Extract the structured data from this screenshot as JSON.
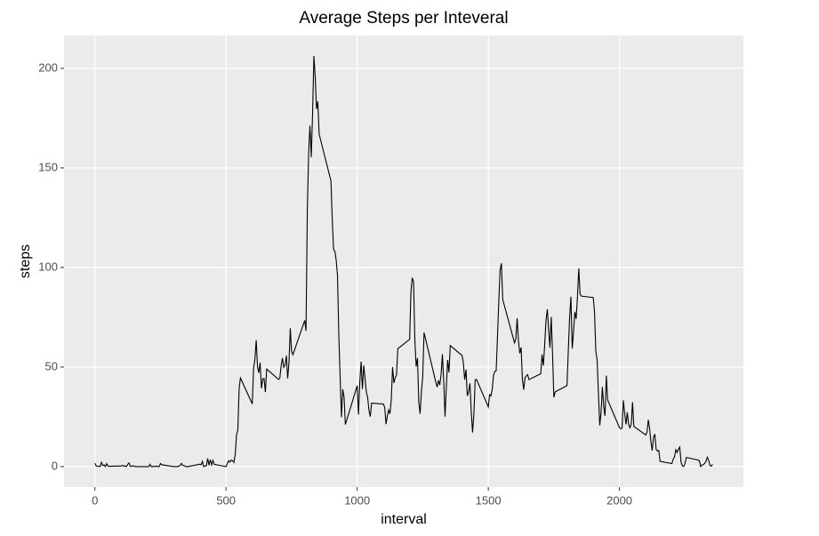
{
  "chart_data": {
    "type": "line",
    "title": "Average Steps per Inteveral",
    "x_label": "interval",
    "y_label": "steps",
    "x": [
      0,
      5,
      10,
      15,
      20,
      25,
      30,
      35,
      40,
      45,
      50,
      55,
      100,
      105,
      110,
      115,
      120,
      125,
      130,
      135,
      140,
      145,
      150,
      155,
      200,
      205,
      210,
      215,
      220,
      225,
      230,
      235,
      240,
      245,
      250,
      255,
      300,
      305,
      310,
      315,
      320,
      325,
      330,
      335,
      340,
      345,
      350,
      355,
      400,
      405,
      410,
      415,
      420,
      425,
      430,
      435,
      440,
      445,
      450,
      455,
      500,
      505,
      510,
      515,
      520,
      525,
      530,
      535,
      540,
      545,
      550,
      555,
      600,
      605,
      610,
      615,
      620,
      625,
      630,
      635,
      640,
      645,
      650,
      655,
      700,
      705,
      710,
      715,
      720,
      725,
      730,
      735,
      740,
      745,
      750,
      755,
      800,
      805,
      810,
      815,
      820,
      825,
      830,
      835,
      840,
      845,
      850,
      855,
      900,
      905,
      910,
      915,
      920,
      925,
      930,
      935,
      940,
      945,
      950,
      955,
      1000,
      1005,
      1010,
      1015,
      1020,
      1025,
      1030,
      1035,
      1040,
      1045,
      1050,
      1055,
      1100,
      1105,
      1110,
      1115,
      1120,
      1125,
      1130,
      1135,
      1140,
      1145,
      1150,
      1155,
      1200,
      1205,
      1210,
      1215,
      1220,
      1225,
      1230,
      1235,
      1240,
      1245,
      1250,
      1255,
      1300,
      1305,
      1310,
      1315,
      1320,
      1325,
      1330,
      1335,
      1340,
      1345,
      1350,
      1355,
      1400,
      1405,
      1410,
      1415,
      1420,
      1425,
      1430,
      1435,
      1440,
      1445,
      1450,
      1455,
      1500,
      1505,
      1510,
      1515,
      1520,
      1525,
      1530,
      1535,
      1540,
      1545,
      1550,
      1555,
      1600,
      1605,
      1610,
      1615,
      1620,
      1625,
      1630,
      1635,
      1640,
      1645,
      1650,
      1655,
      1700,
      1705,
      1710,
      1715,
      1720,
      1725,
      1730,
      1735,
      1740,
      1745,
      1750,
      1755,
      1800,
      1805,
      1810,
      1815,
      1820,
      1825,
      1830,
      1835,
      1840,
      1845,
      1850,
      1855,
      1900,
      1905,
      1910,
      1915,
      1920,
      1925,
      1930,
      1935,
      1940,
      1945,
      1950,
      1955,
      2000,
      2005,
      2010,
      2015,
      2020,
      2025,
      2030,
      2035,
      2040,
      2045,
      2050,
      2055,
      2100,
      2105,
      2110,
      2115,
      2120,
      2125,
      2130,
      2135,
      2140,
      2145,
      2150,
      2155,
      2200,
      2205,
      2210,
      2215,
      2220,
      2225,
      2230,
      2235,
      2240,
      2245,
      2250,
      2255,
      2300,
      2305,
      2310,
      2315,
      2320,
      2325,
      2330,
      2335,
      2340,
      2345,
      2350,
      2355
    ],
    "values": [
      1.7,
      0.34,
      0.13,
      0.15,
      0.08,
      2.1,
      0.53,
      0.87,
      0,
      1.47,
      0.3,
      0.13,
      0.32,
      0.68,
      0.15,
      0.34,
      0,
      1.11,
      1.83,
      0.17,
      0.17,
      0.38,
      0.26,
      0,
      0,
      0,
      1.13,
      0,
      0,
      0.13,
      0,
      0.23,
      0,
      0,
      1.55,
      0.94,
      0,
      0,
      0,
      0,
      0.21,
      0.62,
      1.62,
      0.58,
      0.49,
      0.08,
      0,
      0,
      1.19,
      0.94,
      2.57,
      0,
      0.34,
      0.36,
      4.11,
      0.66,
      3.49,
      0.83,
      3.11,
      1.11,
      0,
      1.57,
      3,
      2.25,
      3.32,
      2.96,
      2.09,
      6.06,
      16,
      18.3,
      39.5,
      44.5,
      31.5,
      49.3,
      53.8,
      63.5,
      50,
      47.1,
      52.2,
      39.3,
      44,
      44.2,
      37.4,
      49,
      43.8,
      44.4,
      50.5,
      54.5,
      49.9,
      51,
      55.7,
      44.3,
      52.3,
      69.5,
      57.8,
      56.2,
      73.4,
      68.2,
      129.4,
      157.5,
      171.2,
      155.4,
      177.3,
      206.2,
      195.9,
      179.6,
      183.4,
      167,
      143.5,
      124,
      109.1,
      108.1,
      103.7,
      96,
      66.2,
      45.2,
      24.8,
      38.8,
      35,
      21.1,
      40.6,
      26.1,
      42.4,
      52.7,
      38.9,
      50.8,
      44.3,
      37.4,
      34.7,
      28.3,
      25.1,
      31.9,
      31.4,
      29.7,
      21.3,
      25.5,
      28.4,
      26.5,
      33.4,
      49.98,
      42,
      44.6,
      46,
      59.2,
      63.9,
      87.7,
      94.8,
      92.8,
      63.4,
      50.2,
      54.5,
      32.4,
      26.5,
      37.7,
      45.1,
      67.3,
      42.3,
      39.9,
      43.3,
      40.98,
      46.2,
      56.4,
      42.8,
      25.1,
      39.96,
      53.5,
      47.3,
      60.8,
      55.8,
      51.96,
      43.6,
      48.7,
      35.5,
      37.5,
      41.8,
      27.5,
      17.1,
      26.1,
      43.6,
      43.8,
      30,
      36.1,
      35.5,
      38.8,
      45.96,
      47.8,
      48.1,
      65.3,
      82.9,
      98.7,
      102.1,
      83.96,
      62.1,
      64.1,
      74.5,
      63.2,
      56.9,
      59.8,
      43.9,
      38.6,
      44.7,
      45.5,
      46.2,
      43.7,
      46.6,
      56.3,
      50.7,
      61.2,
      73.4,
      79,
      68.9,
      59.7,
      75.1,
      56.5,
      34.8,
      37.5,
      40.7,
      58,
      74.7,
      85.3,
      59.3,
      67.8,
      77.7,
      74.2,
      85.3,
      99.5,
      86.6,
      85.6,
      84.9,
      77.8,
      58,
      53.4,
      36.3,
      20.7,
      27.4,
      40,
      30.2,
      25.5,
      45.7,
      33.5,
      19.6,
      19,
      19.3,
      33.3,
      26.8,
      21.2,
      27.3,
      21.3,
      19.5,
      21.3,
      32.3,
      20.2,
      15.9,
      17.2,
      23.5,
      19.2,
      12.5,
      8,
      14.7,
      16.3,
      8.7,
      7.8,
      8.1,
      2.6,
      1.5,
      3.7,
      4.8,
      8.5,
      7.1,
      8.7,
      9.8,
      2.2,
      0.3,
      0.1,
      1.6,
      4.6,
      3.3,
      2.8,
      0,
      0.8,
      0.96,
      1.6,
      2.6,
      4.7,
      3.3,
      0.6,
      0.2,
      1.1
    ],
    "color": "#000000",
    "xlim": [
      -117.75,
      2472.75
    ],
    "xticks": [
      0,
      500,
      1000,
      1500,
      2000
    ],
    "ylim": [
      -10.31,
      216.48
    ],
    "yticks": [
      0,
      50,
      100,
      150,
      200
    ],
    "grid": true
  }
}
